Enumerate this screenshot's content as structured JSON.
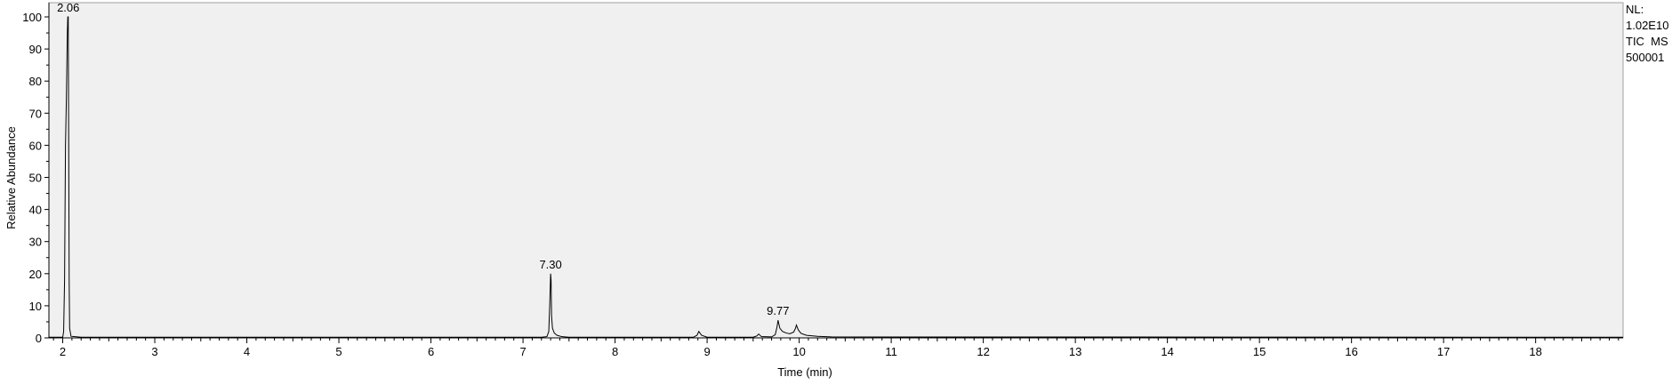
{
  "chart_data": {
    "type": "line",
    "title": "",
    "xlabel": "Time (min)",
    "ylabel": "Relative Abundance",
    "xlim": [
      1.85,
      18.95
    ],
    "ylim": [
      0,
      100
    ],
    "x_ticks": [
      "2",
      "3",
      "4",
      "5",
      "6",
      "7",
      "8",
      "9",
      "10",
      "11",
      "12",
      "13",
      "14",
      "15",
      "16",
      "17",
      "18"
    ],
    "y_ticks": [
      "0",
      "10",
      "20",
      "30",
      "40",
      "50",
      "60",
      "70",
      "80",
      "90",
      "100"
    ],
    "grid": false,
    "plot_background": "#f0f0f0",
    "line_color": "#000000",
    "series": [
      {
        "x": [
          1.85,
          2.0,
          2.01,
          2.02,
          2.03,
          2.04,
          2.05,
          2.055,
          2.06,
          2.065,
          2.07,
          2.075,
          2.09,
          2.2,
          7.2,
          7.26,
          7.28,
          7.29,
          7.3,
          7.305,
          7.31,
          7.32,
          7.34,
          7.37,
          7.42,
          7.5,
          8.85,
          8.89,
          8.91,
          8.94,
          9.0,
          9.5,
          9.54,
          9.56,
          9.59,
          9.7,
          9.74,
          9.76,
          9.77,
          9.79,
          9.82,
          9.86,
          9.9,
          9.94,
          9.96,
          9.97,
          9.99,
          10.02,
          10.08,
          10.2,
          10.35,
          18.95
        ],
        "y": [
          0.2,
          0.2,
          2,
          18,
          60,
          75,
          95,
          100,
          100,
          60,
          18,
          3,
          0.5,
          0.2,
          0.2,
          0.4,
          2,
          10,
          20,
          18,
          7,
          3,
          1.5,
          0.8,
          0.4,
          0.2,
          0.2,
          0.8,
          2,
          0.8,
          0.2,
          0.2,
          0.6,
          1.2,
          0.4,
          0.3,
          1,
          3.5,
          5.5,
          3,
          2,
          1.5,
          1.3,
          1.8,
          3,
          4,
          2.5,
          1.4,
          0.8,
          0.5,
          0.3,
          0.2
        ]
      }
    ],
    "peak_labels": [
      {
        "x": 2.06,
        "y": 100,
        "text": "2.06"
      },
      {
        "x": 7.3,
        "y": 20,
        "text": "7.30"
      },
      {
        "x": 9.77,
        "y": 5.5,
        "text": "9.77"
      }
    ]
  },
  "info": {
    "lines": [
      "NL:",
      "1.02E10",
      "TIC  MS",
      "500001"
    ]
  }
}
